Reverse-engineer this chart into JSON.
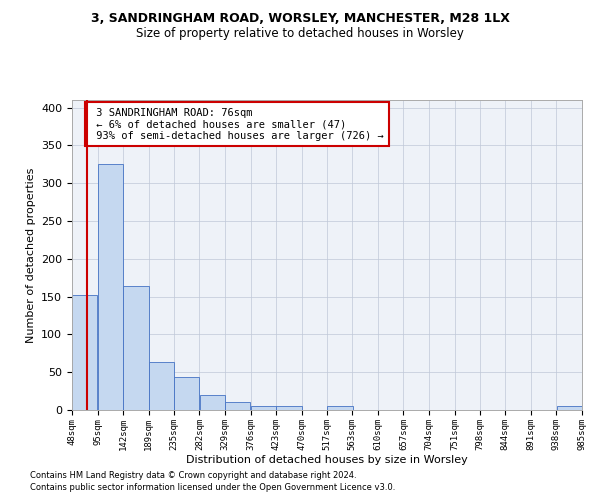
{
  "title1": "3, SANDRINGHAM ROAD, WORSLEY, MANCHESTER, M28 1LX",
  "title2": "Size of property relative to detached houses in Worsley",
  "xlabel": "Distribution of detached houses by size in Worsley",
  "ylabel": "Number of detached properties",
  "footnote1": "Contains HM Land Registry data © Crown copyright and database right 2024.",
  "footnote2": "Contains public sector information licensed under the Open Government Licence v3.0.",
  "annotation_line1": "3 SANDRINGHAM ROAD: 76sqm",
  "annotation_line2": "← 6% of detached houses are smaller (47)",
  "annotation_line3": "93% of semi-detached houses are larger (726) →",
  "property_size": 76,
  "bin_edges": [
    48,
    95,
    142,
    189,
    235,
    282,
    329,
    376,
    423,
    470,
    517,
    563,
    610,
    657,
    704,
    751,
    798,
    844,
    891,
    938,
    985
  ],
  "bin_counts": [
    152,
    326,
    164,
    64,
    43,
    20,
    10,
    5,
    5,
    0,
    5,
    0,
    0,
    0,
    0,
    0,
    0,
    0,
    0,
    5
  ],
  "bar_color": "#c5d8f0",
  "bar_edge_color": "#4472c4",
  "property_line_color": "#cc0000",
  "annotation_box_edge_color": "#cc0000",
  "grid_color": "#c0c8d8",
  "bg_color": "#eef2f8",
  "ylim": [
    0,
    410
  ],
  "yticks": [
    0,
    50,
    100,
    150,
    200,
    250,
    300,
    350,
    400
  ],
  "figsize": [
    6.0,
    5.0
  ],
  "dpi": 100
}
